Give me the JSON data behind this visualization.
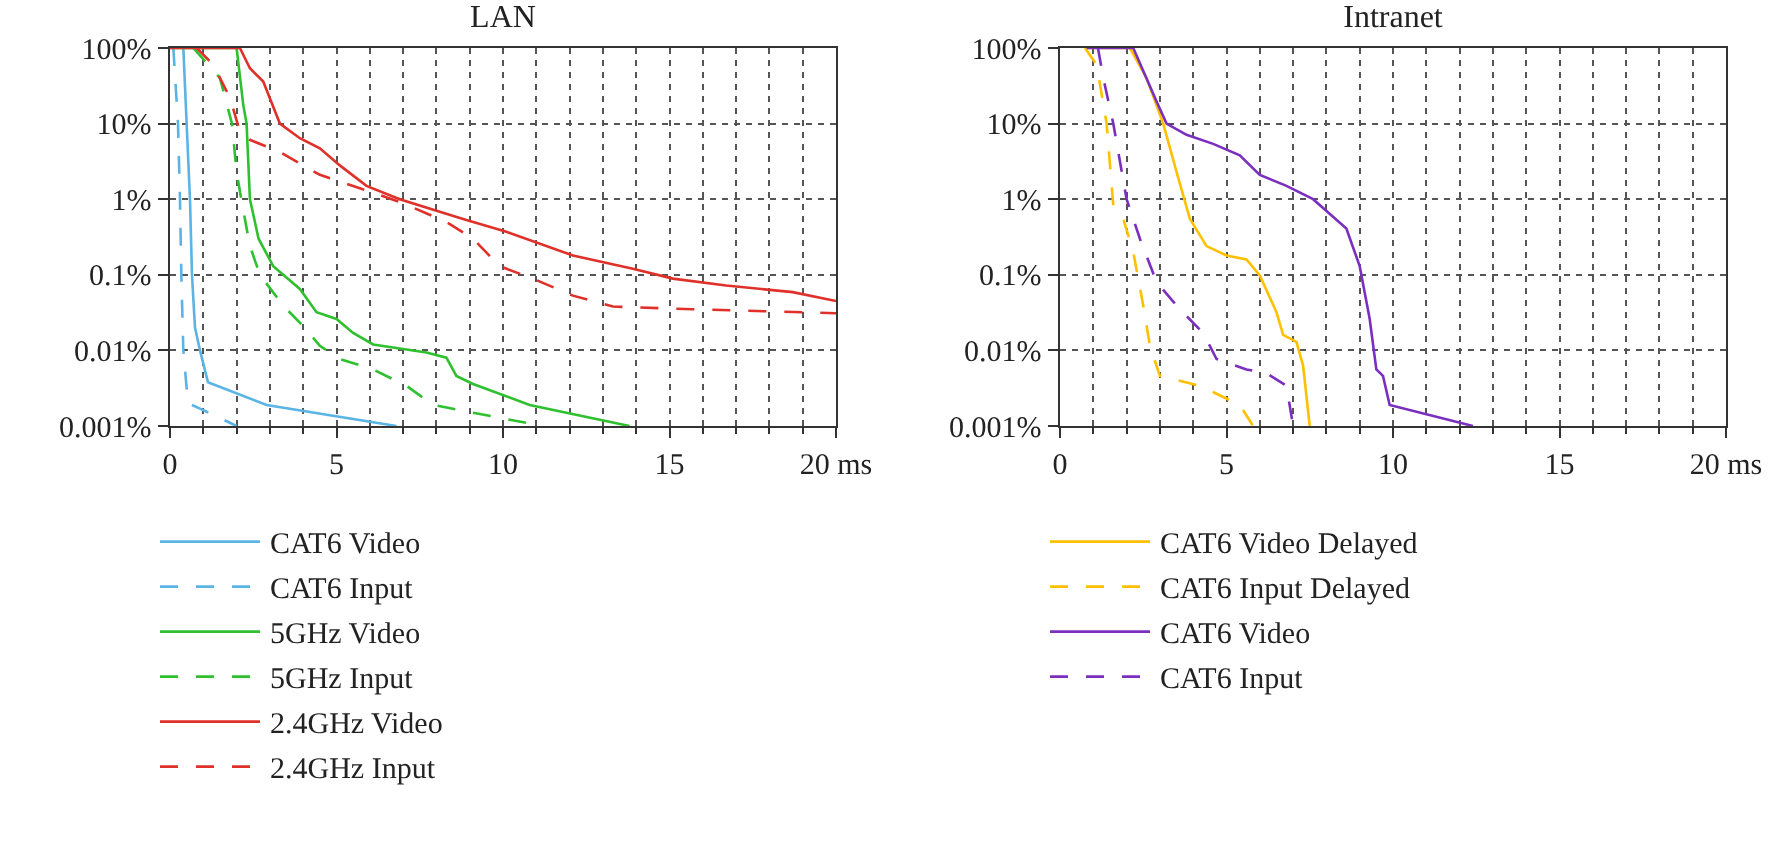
{
  "chart_data": [
    {
      "type": "line",
      "title": "LAN",
      "log": "y",
      "grid": true,
      "legend": "bottom",
      "marker": "none",
      "xlim": [
        0,
        20
      ],
      "xticks": [
        0,
        5,
        10,
        15,
        {
          "value": 20,
          "label": "20 ms"
        }
      ],
      "ylim": [
        0.001,
        100
      ],
      "yticks": [
        {
          "value": 0.001,
          "label": "0.001%"
        },
        {
          "value": 0.01,
          "label": "0.01%"
        },
        {
          "value": 0.1,
          "label": "0.1%"
        },
        {
          "value": 1,
          "label": "1%"
        },
        {
          "value": 10,
          "label": "10%"
        },
        {
          "value": 100,
          "label": "100%"
        }
      ],
      "series": [
        {
          "name": "CAT6 Video",
          "color": "#5ab4e5",
          "line_style": "solid",
          "x": [
            0.4,
            0.5,
            0.6,
            0.66,
            0.75,
            0.9,
            1.14,
            2.9,
            6.8
          ],
          "values": [
            100,
            10,
            1,
            0.1,
            0.02,
            0.01,
            0.0038,
            0.0019,
            0.001
          ]
        },
        {
          "name": "CAT6 Input",
          "color": "#5ab4e5",
          "line_style": "dashed",
          "x": [
            0.1,
            0.24,
            0.3,
            0.34,
            0.4,
            0.54,
            0.9,
            2.0
          ],
          "values": [
            100,
            10,
            1,
            0.1,
            0.01,
            0.002,
            0.0017,
            0.001
          ]
        },
        {
          "name": "5GHz Video",
          "color": "#2fc02f",
          "line_style": "solid",
          "x": [
            0,
            2.0,
            2.2,
            2.3,
            2.4,
            2.66,
            3.1,
            3.9,
            4.4,
            5.0,
            5.5,
            6.1,
            7.7,
            8.3,
            8.6,
            9.1,
            10.8,
            13.8
          ],
          "values": [
            100,
            100,
            17.7,
            10,
            1,
            0.3,
            0.13,
            0.065,
            0.032,
            0.026,
            0.017,
            0.012,
            0.0094,
            0.008,
            0.0046,
            0.0036,
            0.0019,
            0.001
          ]
        },
        {
          "name": "5GHz Input",
          "color": "#2fc02f",
          "line_style": "dashed",
          "x": [
            0.7,
            1.5,
            1.86,
            2.0,
            2.14,
            2.4,
            2.7,
            3.4,
            4.0,
            4.5,
            5.1,
            6.1,
            7.1,
            7.9,
            9.1,
            11.2
          ],
          "values": [
            100,
            40,
            10,
            2.3,
            1,
            0.24,
            0.1,
            0.039,
            0.021,
            0.0115,
            0.0077,
            0.0056,
            0.0034,
            0.0019,
            0.0015,
            0.001
          ]
        },
        {
          "name": "2.4GHz Video",
          "color": "#e0302a",
          "line_style": "solid",
          "x": [
            0,
            2.1,
            2.4,
            2.8,
            3.3,
            3.9,
            4.5,
            5.1,
            5.9,
            6.9,
            8.1,
            8.9,
            10.1,
            12.1,
            13.9,
            15.1,
            16.7,
            18.7,
            20
          ],
          "values": [
            100,
            100,
            54,
            36,
            10,
            6.4,
            4.7,
            2.8,
            1.5,
            1,
            0.68,
            0.53,
            0.37,
            0.18,
            0.12,
            0.089,
            0.072,
            0.059,
            0.045
          ]
        },
        {
          "name": "2.4GHz Input",
          "color": "#e0302a",
          "line_style": "dashed",
          "x": [
            0.8,
            1.3,
            1.8,
            2.1,
            2.4,
            3.3,
            4.5,
            5.7,
            6.9,
            8.3,
            9.1,
            9.9,
            10.9,
            12.1,
            13.3,
            15.7,
            20
          ],
          "values": [
            100,
            60,
            22,
            7.8,
            6.1,
            4.2,
            2.1,
            1.4,
            0.92,
            0.5,
            0.3,
            0.13,
            0.089,
            0.053,
            0.038,
            0.035,
            0.031
          ]
        }
      ]
    },
    {
      "type": "line",
      "title": "Intranet",
      "log": "y",
      "grid": true,
      "legend": "bottom",
      "marker": "none",
      "xlim": [
        0,
        20
      ],
      "xticks": [
        0,
        5,
        10,
        15,
        {
          "value": 20,
          "label": "20 ms"
        }
      ],
      "ylim": [
        0.001,
        100
      ],
      "yticks": [
        {
          "value": 0.001,
          "label": "0.001%"
        },
        {
          "value": 0.01,
          "label": "0.01%"
        },
        {
          "value": 0.1,
          "label": "0.1%"
        },
        {
          "value": 1,
          "label": "1%"
        },
        {
          "value": 10,
          "label": "10%"
        },
        {
          "value": 100,
          "label": "100%"
        }
      ],
      "series": [
        {
          "name": "CAT6 Video Delayed",
          "color": "#ffc000",
          "line_style": "solid",
          "x": [
            0.8,
            2.1,
            2.6,
            3.1,
            3.5,
            3.9,
            4.4,
            5.0,
            5.6,
            6.0,
            6.5,
            6.7,
            7.1,
            7.3,
            7.5
          ],
          "values": [
            100,
            100,
            40,
            10,
            2.3,
            0.55,
            0.24,
            0.18,
            0.16,
            0.098,
            0.032,
            0.016,
            0.013,
            0.0063,
            0.001
          ]
        },
        {
          "name": "CAT6 Input Delayed",
          "color": "#ffc000",
          "line_style": "dashed",
          "x": [
            0.75,
            1.1,
            1.4,
            1.6,
            1.9,
            2.2,
            2.5,
            2.7,
            3.0,
            4.2,
            5.4,
            5.8
          ],
          "values": [
            100,
            60,
            10,
            0.83,
            0.55,
            0.2,
            0.039,
            0.0115,
            0.0046,
            0.0034,
            0.0019,
            0.001
          ]
        },
        {
          "name": "CAT6 Video",
          "color": "#7b2fbf",
          "line_style": "solid",
          "x": [
            0.8,
            2.2,
            2.9,
            3.2,
            3.8,
            4.6,
            5.4,
            6.0,
            6.8,
            7.6,
            8.6,
            9.0,
            9.3,
            9.5,
            9.7,
            9.9,
            12.4
          ],
          "values": [
            100,
            100,
            19.6,
            10,
            7.1,
            5.4,
            3.8,
            2.1,
            1.5,
            1.0,
            0.41,
            0.13,
            0.026,
            0.0056,
            0.0046,
            0.0019,
            0.001
          ]
        },
        {
          "name": "CAT6 Input",
          "color": "#7b2fbf",
          "line_style": "dashed",
          "x": [
            1.14,
            1.3,
            1.6,
            2.0,
            2.4,
            2.9,
            3.6,
            4.3,
            4.7,
            5.6,
            6.2,
            6.8,
            7.0
          ],
          "values": [
            100,
            40,
            10,
            1,
            0.3,
            0.08,
            0.035,
            0.017,
            0.0077,
            0.0056,
            0.005,
            0.0034,
            0.001
          ]
        }
      ]
    }
  ]
}
